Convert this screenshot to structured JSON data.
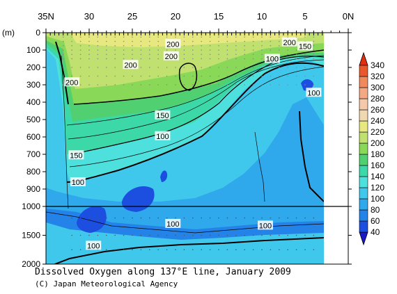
{
  "chart_data": {
    "type": "heatmap",
    "title": "Dissolved Oxygen along 137°E line, January 2009",
    "credit": "(C) Japan Meteorological Agency",
    "x_ticks": [
      "35N",
      "30",
      "25",
      "20",
      "15",
      "10",
      "5",
      "0N"
    ],
    "x_range": [
      35,
      0
    ],
    "y_unit": "(m)",
    "y_ticks_upper": [
      "0",
      "100",
      "200",
      "300",
      "400",
      "500",
      "600",
      "700",
      "800",
      "900",
      "1000"
    ],
    "y_ticks_lower": [
      "1500",
      "2000"
    ],
    "y_range": [
      0,
      2000
    ],
    "colorbar": {
      "levels": [
        40,
        60,
        80,
        100,
        120,
        140,
        160,
        180,
        200,
        220,
        240,
        260,
        280,
        300,
        320,
        340
      ],
      "labels": [
        "340",
        "320",
        "300",
        "280",
        "260",
        "240",
        "220",
        "200",
        "180",
        "160",
        "140",
        "120",
        "100",
        "80",
        "60",
        "40"
      ],
      "colors": [
        "#1818c8",
        "#1c4ee0",
        "#2483e8",
        "#30a8ec",
        "#40c8ec",
        "#4ee0dc",
        "#3cd8a8",
        "#50d070",
        "#8ad858",
        "#c0e070",
        "#e8e880",
        "#f0d8b0",
        "#f4c8a8",
        "#f4a884",
        "#f08a5c",
        "#e8582c",
        "#e03010"
      ]
    },
    "contour_labels": [
      {
        "text": "200",
        "lat": 20.3,
        "depth": 65
      },
      {
        "text": "200",
        "lat": 6.8,
        "depth": 55
      },
      {
        "text": "150",
        "lat": 5.0,
        "depth": 78
      },
      {
        "text": "200",
        "lat": 20.5,
        "depth": 135
      },
      {
        "text": "200",
        "lat": 25.2,
        "depth": 185
      },
      {
        "text": "100",
        "lat": 8.8,
        "depth": 150
      },
      {
        "text": "200",
        "lat": 32.0,
        "depth": 285
      },
      {
        "text": "100",
        "lat": 4.0,
        "depth": 345
      },
      {
        "text": "150",
        "lat": 21.5,
        "depth": 475
      },
      {
        "text": "100",
        "lat": 21.5,
        "depth": 595
      },
      {
        "text": "150",
        "lat": 31.5,
        "depth": 705
      },
      {
        "text": "100",
        "lat": 31.3,
        "depth": 860
      },
      {
        "text": "100",
        "lat": 20.3,
        "depth": 1300
      },
      {
        "text": "100",
        "lat": 9.6,
        "depth": 1330
      },
      {
        "text": "100",
        "lat": 29.5,
        "depth": 1680
      }
    ]
  }
}
